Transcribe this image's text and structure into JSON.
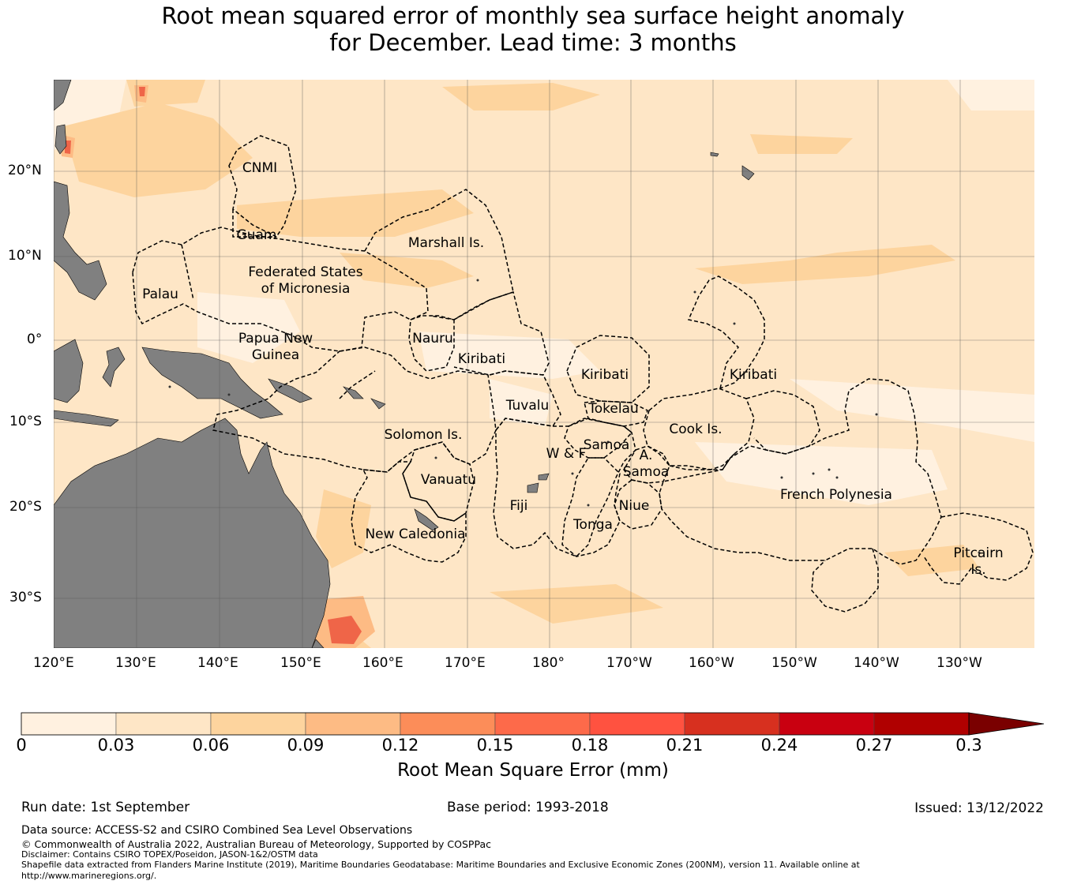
{
  "title": {
    "line1": "Root mean squared error of monthly sea surface height anomaly",
    "line2": "for December. Lead time: 3 months"
  },
  "map": {
    "lon_labels": [
      "120°E",
      "130°E",
      "140°E",
      "150°E",
      "160°E",
      "170°E",
      "180°",
      "170°W",
      "160°W",
      "150°W",
      "140°W",
      "130°W"
    ],
    "lat_labels": [
      "20°N",
      "10°N",
      "0°",
      "10°S",
      "20°S",
      "30°S"
    ],
    "regions": [
      {
        "label": "CNMI"
      },
      {
        "label": "Guam"
      },
      {
        "label": "Marshall Is."
      },
      {
        "label": "Federated States"
      },
      {
        "label": "of Micronesia"
      },
      {
        "label": "Palau"
      },
      {
        "label": "Papua New"
      },
      {
        "label": "Guinea"
      },
      {
        "label": "Nauru"
      },
      {
        "label": "Kiribati"
      },
      {
        "label": "Kiribati"
      },
      {
        "label": "Kiribati"
      },
      {
        "label": "Tuvalu"
      },
      {
        "label": "Tokelau"
      },
      {
        "label": "Solomon Is."
      },
      {
        "label": "Samoa"
      },
      {
        "label": "W & F"
      },
      {
        "label": "A."
      },
      {
        "label": "Samoa"
      },
      {
        "label": "Cook Is."
      },
      {
        "label": "Vanuatu"
      },
      {
        "label": "Fiji"
      },
      {
        "label": "Niue"
      },
      {
        "label": "Tonga"
      },
      {
        "label": "French Polynesia"
      },
      {
        "label": "New Caledonia"
      },
      {
        "label": "Pitcairn"
      },
      {
        "label": "Is."
      }
    ],
    "colors": {
      "ocean_base": "#fee6c6",
      "ocean_light": "#fff1e0",
      "ocean_mid": "#fdd49e",
      "ocean_orange": "#fdbb84",
      "hotspot": "#ef6548",
      "land": "#808080",
      "grid": "#555555",
      "boundary": "#000000"
    }
  },
  "colorbar": {
    "ticks": [
      "0",
      "0.03",
      "0.06",
      "0.09",
      "0.12",
      "0.15",
      "0.18",
      "0.21",
      "0.24",
      "0.27",
      "0.3"
    ],
    "colors": [
      "#fff1e0",
      "#fee6c6",
      "#fdd49e",
      "#fdbb84",
      "#fc8d59",
      "#fd6a4a",
      "#ff5240",
      "#d7301f",
      "#c90010",
      "#b00000"
    ],
    "extend_color": "#7a0000",
    "label": "Root Mean Square Error (mm)"
  },
  "footer": {
    "run_date": "Run date: 1st September",
    "base_period": "Base period: 1993-2018",
    "issued": "Issued: 13/12/2022",
    "data_source": "Data source: ACCESS-S2 and CSIRO Combined Sea Level Observations",
    "copyright": "© Commonwealth of Australia 2022, Australian Bureau of Meteorology, Supported by COSPPac",
    "disclaimer": "Disclaimer: Contains CSIRO TOPEX/Poseidon, JASON-1&2/OSTM data",
    "shapefile": "Shapefile data extracted from Flanders Marine Institute (2019), Maritime Boundaries Geodatabase: Maritime Boundaries and Exclusive Economic Zones (200NM), version 11. Available online at",
    "url": "http://www.marineregions.org/."
  }
}
